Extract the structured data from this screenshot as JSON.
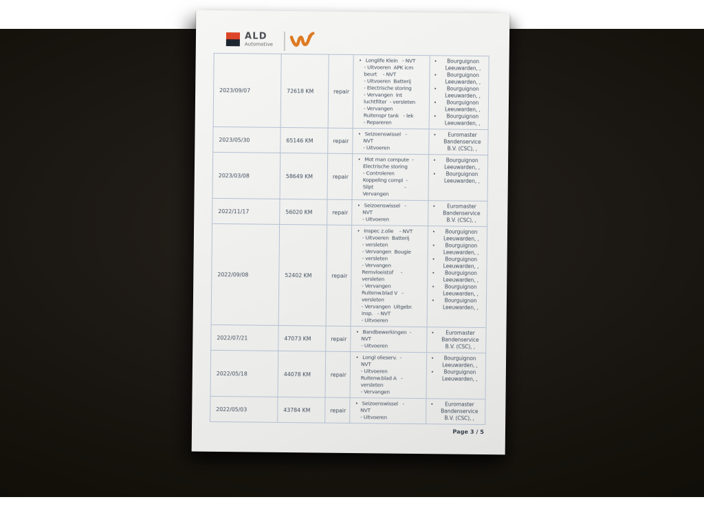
{
  "document": {
    "logo": {
      "brand": "ALD",
      "brand_sub": "Automotive",
      "square_top_color": "#dc4527",
      "square_bottom_color": "#1d2530",
      "partner_mark": "orange-w-scribble",
      "partner_mark_color": "#dd7a22"
    },
    "footer": {
      "label": "Page ",
      "page": "3 / 5"
    }
  },
  "colors": {
    "table_border": "#b3c0d2",
    "text": "#414e5e",
    "page_bg": "#efefed",
    "photo_bg": "#16130f"
  },
  "table": {
    "bullet": "•",
    "rows": [
      {
        "date": "2023/09/07",
        "km": "72618 KM",
        "type": "repair",
        "description": " Longlife Klein   - NVT\n- Uitvoeren  APK icm\nbeurt    - NVT\n- Uitvoeren  Batterij\n- Electrische storing\n- Vervangen  Int\nluchtfilter  - versleten\n- Vervangen\nRuitenspr tank   - lek\n- Repareren",
        "providers": [
          "Bourguignon Leeuwarden, ,",
          "Bourguignon Leeuwarden, ,",
          "Bourguignon Leeuwarden, ,",
          "Bourguignon Leeuwarden, ,",
          "Bourguignon Leeuwarden, ,"
        ]
      },
      {
        "date": "2023/05/30",
        "km": "65146 KM",
        "type": "repair",
        "description": " Seizoenswissel   -\nNVT\n- Uitvoeren",
        "providers": [
          "Euromaster Bandenservice B.V. (CSC), ,"
        ]
      },
      {
        "date": "2023/03/08",
        "km": "58649 KM",
        "type": "repair",
        "description": " Mot man compute  -\nElectrische storing\n- Controleren\nKoppeling compl  -\nSlipt                     -\nVervangen",
        "providers": [
          "Bourguignon Leeuwarden, ,",
          "Bourguignon Leeuwarden, ,"
        ]
      },
      {
        "date": "2022/11/17",
        "km": "56020 KM",
        "type": "repair",
        "description": " Seizoenswissel   -\nNVT\n- Uitvoeren",
        "providers": [
          "Euromaster Bandenservice B.V. (CSC), ,"
        ]
      },
      {
        "date": "2022/09/08",
        "km": "52402 KM",
        "type": "repair",
        "description": " Inspec z.olie    - NVT\n- Uitvoeren  Batterij\n- versleten\n- Vervangen  Bougie\n- versleten\n- Vervangen\nRemvloeistof     -\nversleten\n- Vervangen\nRuitenw.blad V   -\nversleten\n- Vervangen  Uitgebr.\ninsp.   - NVT\n- Uitvoeren",
        "providers": [
          "Bourguignon Leeuwarden, ,",
          "Bourguignon Leeuwarden, ,",
          "Bourguignon Leeuwarden, ,",
          "Bourguignon Leeuwarden, ,",
          "Bourguignon Leeuwarden, ,",
          "Bourguignon Leeuwarden, ,"
        ]
      },
      {
        "date": "2022/07/21",
        "km": "47073 KM",
        "type": "repair",
        "description": " Bandbewerkingen  -\nNVT\n- Uitvoeren",
        "providers": [
          "Euromaster Bandenservice B.V. (CSC), ,"
        ]
      },
      {
        "date": "2022/05/18",
        "km": "44078 KM",
        "type": "repair",
        "description": " Longl olieserv.  -\nNVT\n- Uitvoeren\nRuitenw.blad A   -\nversleten\n- Vervangen",
        "providers": [
          "Bourguignon Leeuwarden, ,",
          "Bourguignon Leeuwarden, ,"
        ]
      },
      {
        "date": "2022/05/03",
        "km": "43784 KM",
        "type": "repair",
        "description": " Seizoenswissel   -\nNVT\n- Uitvoeren",
        "providers": [
          "Euromaster Bandenservice B.V. (CSC), ,"
        ]
      }
    ]
  }
}
